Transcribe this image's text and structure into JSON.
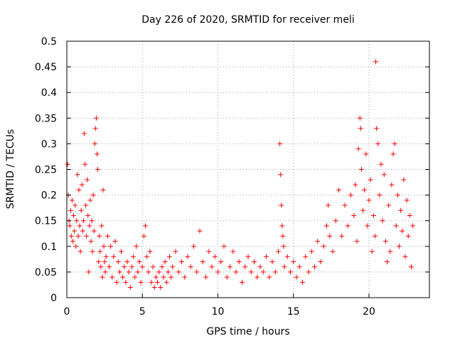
{
  "chart_data": {
    "type": "scatter",
    "title": "Day 226 of 2020, SRMTID for receiver meli",
    "xlabel": "GPS time / hours",
    "ylabel": "SRMTID / TECUs",
    "xlim": [
      0,
      24
    ],
    "ylim": [
      0,
      0.5
    ],
    "xticks": [
      0,
      5,
      10,
      15,
      20
    ],
    "xtick_labels": [
      "0",
      "5",
      "10",
      "15",
      "20"
    ],
    "yticks": [
      0,
      0.05,
      0.1,
      0.15,
      0.2,
      0.25,
      0.3,
      0.35,
      0.4,
      0.45,
      0.5
    ],
    "ytick_labels": [
      "0",
      "0.05",
      "0.1",
      "0.15",
      "0.2",
      "0.25",
      "0.3",
      "0.35",
      "0.4",
      "0.45",
      "0.5"
    ],
    "grid": true,
    "marker": "plus",
    "color": "#ff0000",
    "points": [
      [
        0.05,
        0.26
      ],
      [
        0.1,
        0.2
      ],
      [
        0.15,
        0.15
      ],
      [
        0.2,
        0.14
      ],
      [
        0.25,
        0.17
      ],
      [
        0.3,
        0.12
      ],
      [
        0.35,
        0.19
      ],
      [
        0.4,
        0.11
      ],
      [
        0.45,
        0.16
      ],
      [
        0.5,
        0.13
      ],
      [
        0.55,
        0.18
      ],
      [
        0.6,
        0.1
      ],
      [
        0.65,
        0.15
      ],
      [
        0.7,
        0.24
      ],
      [
        0.75,
        0.12
      ],
      [
        0.8,
        0.21
      ],
      [
        0.85,
        0.14
      ],
      [
        0.9,
        0.09
      ],
      [
        0.95,
        0.17
      ],
      [
        1.0,
        0.22
      ],
      [
        1.05,
        0.13
      ],
      [
        1.1,
        0.15
      ],
      [
        1.15,
        0.32
      ],
      [
        1.2,
        0.26
      ],
      [
        1.25,
        0.18
      ],
      [
        1.3,
        0.12
      ],
      [
        1.35,
        0.23
      ],
      [
        1.4,
        0.16
      ],
      [
        1.45,
        0.05
      ],
      [
        1.5,
        0.14
      ],
      [
        1.55,
        0.19
      ],
      [
        1.6,
        0.11
      ],
      [
        1.65,
        0.15
      ],
      [
        1.7,
        0.09
      ],
      [
        1.75,
        0.2
      ],
      [
        1.8,
        0.13
      ],
      [
        1.85,
        0.3
      ],
      [
        1.9,
        0.33
      ],
      [
        1.95,
        0.35
      ],
      [
        2.0,
        0.28
      ],
      [
        2.05,
        0.25
      ],
      [
        2.1,
        0.07
      ],
      [
        2.15,
        0.12
      ],
      [
        2.2,
        0.09
      ],
      [
        2.25,
        0.06
      ],
      [
        2.3,
        0.14
      ],
      [
        2.35,
        0.04
      ],
      [
        2.4,
        0.21
      ],
      [
        2.45,
        0.1
      ],
      [
        2.5,
        0.07
      ],
      [
        2.55,
        0.05
      ],
      [
        2.6,
        0.08
      ],
      [
        2.7,
        0.12
      ],
      [
        2.8,
        0.06
      ],
      [
        2.9,
        0.1
      ],
      [
        3.0,
        0.04
      ],
      [
        3.1,
        0.08
      ],
      [
        3.2,
        0.11
      ],
      [
        3.3,
        0.03
      ],
      [
        3.4,
        0.07
      ],
      [
        3.5,
        0.05
      ],
      [
        3.6,
        0.09
      ],
      [
        3.7,
        0.04
      ],
      [
        3.8,
        0.06
      ],
      [
        3.9,
        0.03
      ],
      [
        4.0,
        0.07
      ],
      [
        4.1,
        0.05
      ],
      [
        4.2,
        0.02
      ],
      [
        4.3,
        0.06
      ],
      [
        4.4,
        0.08
      ],
      [
        4.5,
        0.04
      ],
      [
        4.6,
        0.1
      ],
      [
        4.7,
        0.05
      ],
      [
        4.8,
        0.07
      ],
      [
        4.9,
        0.03
      ],
      [
        5.0,
        0.06
      ],
      [
        5.1,
        0.12
      ],
      [
        5.2,
        0.14
      ],
      [
        5.3,
        0.08
      ],
      [
        5.4,
        0.05
      ],
      [
        5.5,
        0.09
      ],
      [
        5.6,
        0.03
      ],
      [
        5.7,
        0.06
      ],
      [
        5.8,
        0.02
      ],
      [
        5.9,
        0.04
      ],
      [
        6.0,
        0.03
      ],
      [
        6.1,
        0.05
      ],
      [
        6.2,
        0.02
      ],
      [
        6.3,
        0.06
      ],
      [
        6.4,
        0.04
      ],
      [
        6.5,
        0.07
      ],
      [
        6.6,
        0.03
      ],
      [
        6.7,
        0.05
      ],
      [
        6.8,
        0.08
      ],
      [
        6.9,
        0.04
      ],
      [
        7.0,
        0.06
      ],
      [
        7.2,
        0.09
      ],
      [
        7.4,
        0.05
      ],
      [
        7.6,
        0.07
      ],
      [
        7.8,
        0.04
      ],
      [
        8.0,
        0.08
      ],
      [
        8.2,
        0.06
      ],
      [
        8.4,
        0.1
      ],
      [
        8.6,
        0.05
      ],
      [
        8.8,
        0.13
      ],
      [
        9.0,
        0.07
      ],
      [
        9.2,
        0.04
      ],
      [
        9.4,
        0.09
      ],
      [
        9.6,
        0.06
      ],
      [
        9.8,
        0.08
      ],
      [
        10.0,
        0.05
      ],
      [
        10.2,
        0.07
      ],
      [
        10.4,
        0.1
      ],
      [
        10.6,
        0.04
      ],
      [
        10.8,
        0.06
      ],
      [
        11.0,
        0.09
      ],
      [
        11.2,
        0.05
      ],
      [
        11.4,
        0.07
      ],
      [
        11.6,
        0.03
      ],
      [
        11.8,
        0.06
      ],
      [
        12.0,
        0.08
      ],
      [
        12.2,
        0.05
      ],
      [
        12.4,
        0.07
      ],
      [
        12.6,
        0.04
      ],
      [
        12.8,
        0.06
      ],
      [
        13.0,
        0.05
      ],
      [
        13.2,
        0.08
      ],
      [
        13.4,
        0.04
      ],
      [
        13.6,
        0.07
      ],
      [
        13.8,
        0.05
      ],
      [
        14.0,
        0.09
      ],
      [
        14.1,
        0.3
      ],
      [
        14.15,
        0.24
      ],
      [
        14.2,
        0.18
      ],
      [
        14.25,
        0.14
      ],
      [
        14.3,
        0.12
      ],
      [
        14.35,
        0.1
      ],
      [
        14.4,
        0.06
      ],
      [
        14.6,
        0.08
      ],
      [
        14.8,
        0.05
      ],
      [
        15.0,
        0.07
      ],
      [
        15.2,
        0.04
      ],
      [
        15.4,
        0.06
      ],
      [
        15.6,
        0.03
      ],
      [
        15.8,
        0.08
      ],
      [
        16.0,
        0.05
      ],
      [
        16.2,
        0.09
      ],
      [
        16.4,
        0.06
      ],
      [
        16.6,
        0.11
      ],
      [
        16.8,
        0.07
      ],
      [
        17.0,
        0.1
      ],
      [
        17.2,
        0.14
      ],
      [
        17.3,
        0.18
      ],
      [
        17.4,
        0.12
      ],
      [
        17.6,
        0.09
      ],
      [
        17.8,
        0.15
      ],
      [
        18.0,
        0.21
      ],
      [
        18.2,
        0.12
      ],
      [
        18.4,
        0.18
      ],
      [
        18.6,
        0.14
      ],
      [
        18.8,
        0.2
      ],
      [
        19.0,
        0.16
      ],
      [
        19.1,
        0.22
      ],
      [
        19.2,
        0.11
      ],
      [
        19.3,
        0.29
      ],
      [
        19.4,
        0.35
      ],
      [
        19.45,
        0.33
      ],
      [
        19.5,
        0.25
      ],
      [
        19.6,
        0.17
      ],
      [
        19.7,
        0.21
      ],
      [
        19.8,
        0.28
      ],
      [
        19.9,
        0.14
      ],
      [
        20.0,
        0.19
      ],
      [
        20.1,
        0.23
      ],
      [
        20.2,
        0.09
      ],
      [
        20.3,
        0.16
      ],
      [
        20.4,
        0.12
      ],
      [
        20.45,
        0.46
      ],
      [
        20.5,
        0.33
      ],
      [
        20.6,
        0.3
      ],
      [
        20.7,
        0.2
      ],
      [
        20.8,
        0.26
      ],
      [
        20.9,
        0.15
      ],
      [
        21.0,
        0.24
      ],
      [
        21.1,
        0.11
      ],
      [
        21.2,
        0.07
      ],
      [
        21.3,
        0.18
      ],
      [
        21.4,
        0.09
      ],
      [
        21.5,
        0.22
      ],
      [
        21.6,
        0.28
      ],
      [
        21.7,
        0.3
      ],
      [
        21.8,
        0.14
      ],
      [
        21.9,
        0.2
      ],
      [
        22.0,
        0.1
      ],
      [
        22.1,
        0.17
      ],
      [
        22.2,
        0.13
      ],
      [
        22.3,
        0.23
      ],
      [
        22.4,
        0.08
      ],
      [
        22.5,
        0.19
      ],
      [
        22.6,
        0.12
      ],
      [
        22.7,
        0.16
      ],
      [
        22.8,
        0.06
      ],
      [
        22.9,
        0.14
      ]
    ]
  }
}
